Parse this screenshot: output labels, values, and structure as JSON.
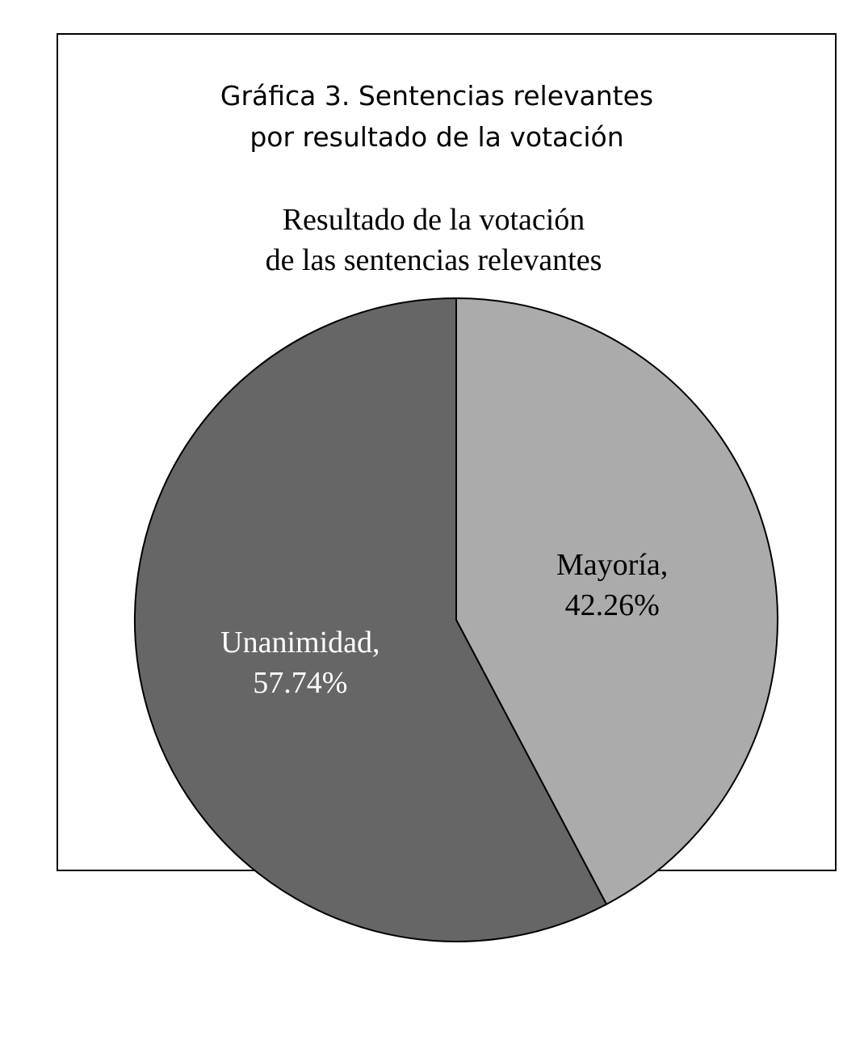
{
  "chart_data": {
    "type": "pie",
    "title": [
      "Gráfica 3.  Sentencias relevantes",
      "por resultado de la votación"
    ],
    "subtitle": [
      "Resultado de la votación",
      "de las sentencias relevantes"
    ],
    "categories": [
      "Mayoría,",
      "Unanimidad,"
    ],
    "values": [
      42.26,
      57.74
    ],
    "value_labels": [
      "42.26%",
      "57.74%"
    ],
    "colors": [
      "#ababab",
      "#666666"
    ]
  }
}
